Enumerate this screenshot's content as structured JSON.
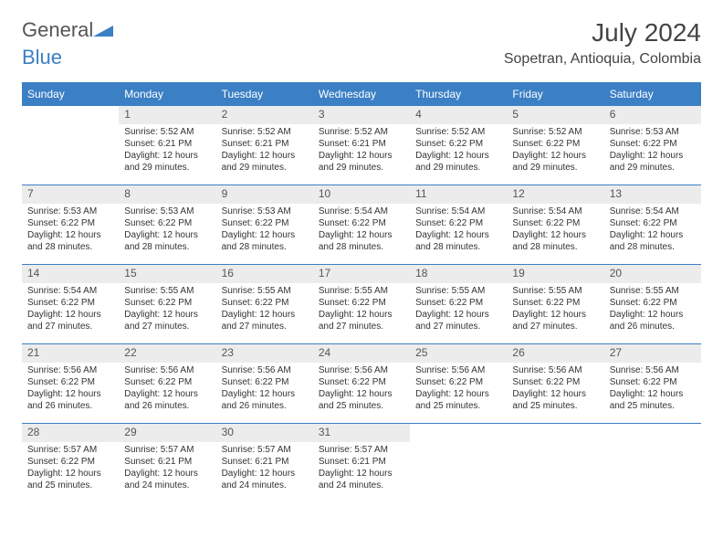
{
  "logo": {
    "part1": "General",
    "part2": "Blue"
  },
  "title": "July 2024",
  "location": "Sopetran, Antioquia, Colombia",
  "weekdays": [
    "Sunday",
    "Monday",
    "Tuesday",
    "Wednesday",
    "Thursday",
    "Friday",
    "Saturday"
  ],
  "colors": {
    "header_bg": "#3b7fc4",
    "header_text": "#ffffff",
    "daynum_bg": "#ececec",
    "border": "#3b7fc4",
    "logo_blue": "#3b7fc4",
    "text": "#333333"
  },
  "weeks": [
    [
      {
        "empty": true
      },
      {
        "num": "1",
        "sunrise": "Sunrise: 5:52 AM",
        "sunset": "Sunset: 6:21 PM",
        "daylight": "Daylight: 12 hours and 29 minutes."
      },
      {
        "num": "2",
        "sunrise": "Sunrise: 5:52 AM",
        "sunset": "Sunset: 6:21 PM",
        "daylight": "Daylight: 12 hours and 29 minutes."
      },
      {
        "num": "3",
        "sunrise": "Sunrise: 5:52 AM",
        "sunset": "Sunset: 6:21 PM",
        "daylight": "Daylight: 12 hours and 29 minutes."
      },
      {
        "num": "4",
        "sunrise": "Sunrise: 5:52 AM",
        "sunset": "Sunset: 6:22 PM",
        "daylight": "Daylight: 12 hours and 29 minutes."
      },
      {
        "num": "5",
        "sunrise": "Sunrise: 5:52 AM",
        "sunset": "Sunset: 6:22 PM",
        "daylight": "Daylight: 12 hours and 29 minutes."
      },
      {
        "num": "6",
        "sunrise": "Sunrise: 5:53 AM",
        "sunset": "Sunset: 6:22 PM",
        "daylight": "Daylight: 12 hours and 29 minutes."
      }
    ],
    [
      {
        "num": "7",
        "sunrise": "Sunrise: 5:53 AM",
        "sunset": "Sunset: 6:22 PM",
        "daylight": "Daylight: 12 hours and 28 minutes."
      },
      {
        "num": "8",
        "sunrise": "Sunrise: 5:53 AM",
        "sunset": "Sunset: 6:22 PM",
        "daylight": "Daylight: 12 hours and 28 minutes."
      },
      {
        "num": "9",
        "sunrise": "Sunrise: 5:53 AM",
        "sunset": "Sunset: 6:22 PM",
        "daylight": "Daylight: 12 hours and 28 minutes."
      },
      {
        "num": "10",
        "sunrise": "Sunrise: 5:54 AM",
        "sunset": "Sunset: 6:22 PM",
        "daylight": "Daylight: 12 hours and 28 minutes."
      },
      {
        "num": "11",
        "sunrise": "Sunrise: 5:54 AM",
        "sunset": "Sunset: 6:22 PM",
        "daylight": "Daylight: 12 hours and 28 minutes."
      },
      {
        "num": "12",
        "sunrise": "Sunrise: 5:54 AM",
        "sunset": "Sunset: 6:22 PM",
        "daylight": "Daylight: 12 hours and 28 minutes."
      },
      {
        "num": "13",
        "sunrise": "Sunrise: 5:54 AM",
        "sunset": "Sunset: 6:22 PM",
        "daylight": "Daylight: 12 hours and 28 minutes."
      }
    ],
    [
      {
        "num": "14",
        "sunrise": "Sunrise: 5:54 AM",
        "sunset": "Sunset: 6:22 PM",
        "daylight": "Daylight: 12 hours and 27 minutes."
      },
      {
        "num": "15",
        "sunrise": "Sunrise: 5:55 AM",
        "sunset": "Sunset: 6:22 PM",
        "daylight": "Daylight: 12 hours and 27 minutes."
      },
      {
        "num": "16",
        "sunrise": "Sunrise: 5:55 AM",
        "sunset": "Sunset: 6:22 PM",
        "daylight": "Daylight: 12 hours and 27 minutes."
      },
      {
        "num": "17",
        "sunrise": "Sunrise: 5:55 AM",
        "sunset": "Sunset: 6:22 PM",
        "daylight": "Daylight: 12 hours and 27 minutes."
      },
      {
        "num": "18",
        "sunrise": "Sunrise: 5:55 AM",
        "sunset": "Sunset: 6:22 PM",
        "daylight": "Daylight: 12 hours and 27 minutes."
      },
      {
        "num": "19",
        "sunrise": "Sunrise: 5:55 AM",
        "sunset": "Sunset: 6:22 PM",
        "daylight": "Daylight: 12 hours and 27 minutes."
      },
      {
        "num": "20",
        "sunrise": "Sunrise: 5:55 AM",
        "sunset": "Sunset: 6:22 PM",
        "daylight": "Daylight: 12 hours and 26 minutes."
      }
    ],
    [
      {
        "num": "21",
        "sunrise": "Sunrise: 5:56 AM",
        "sunset": "Sunset: 6:22 PM",
        "daylight": "Daylight: 12 hours and 26 minutes."
      },
      {
        "num": "22",
        "sunrise": "Sunrise: 5:56 AM",
        "sunset": "Sunset: 6:22 PM",
        "daylight": "Daylight: 12 hours and 26 minutes."
      },
      {
        "num": "23",
        "sunrise": "Sunrise: 5:56 AM",
        "sunset": "Sunset: 6:22 PM",
        "daylight": "Daylight: 12 hours and 26 minutes."
      },
      {
        "num": "24",
        "sunrise": "Sunrise: 5:56 AM",
        "sunset": "Sunset: 6:22 PM",
        "daylight": "Daylight: 12 hours and 25 minutes."
      },
      {
        "num": "25",
        "sunrise": "Sunrise: 5:56 AM",
        "sunset": "Sunset: 6:22 PM",
        "daylight": "Daylight: 12 hours and 25 minutes."
      },
      {
        "num": "26",
        "sunrise": "Sunrise: 5:56 AM",
        "sunset": "Sunset: 6:22 PM",
        "daylight": "Daylight: 12 hours and 25 minutes."
      },
      {
        "num": "27",
        "sunrise": "Sunrise: 5:56 AM",
        "sunset": "Sunset: 6:22 PM",
        "daylight": "Daylight: 12 hours and 25 minutes."
      }
    ],
    [
      {
        "num": "28",
        "sunrise": "Sunrise: 5:57 AM",
        "sunset": "Sunset: 6:22 PM",
        "daylight": "Daylight: 12 hours and 25 minutes."
      },
      {
        "num": "29",
        "sunrise": "Sunrise: 5:57 AM",
        "sunset": "Sunset: 6:21 PM",
        "daylight": "Daylight: 12 hours and 24 minutes."
      },
      {
        "num": "30",
        "sunrise": "Sunrise: 5:57 AM",
        "sunset": "Sunset: 6:21 PM",
        "daylight": "Daylight: 12 hours and 24 minutes."
      },
      {
        "num": "31",
        "sunrise": "Sunrise: 5:57 AM",
        "sunset": "Sunset: 6:21 PM",
        "daylight": "Daylight: 12 hours and 24 minutes."
      },
      {
        "empty": true
      },
      {
        "empty": true
      },
      {
        "empty": true
      }
    ]
  ]
}
